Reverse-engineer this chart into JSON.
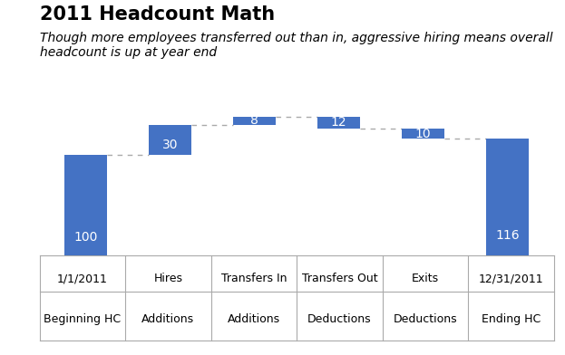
{
  "title": "2011 Headcount Math",
  "subtitle": "Though more employees transferred out than in, aggressive hiring means overall\nheadcount is up at year end",
  "bar_color": "#4472C4",
  "x_line1": [
    "1/1/2011",
    "Hires",
    "Transfers In",
    "Transfers Out",
    "Exits",
    "12/31/2011"
  ],
  "x_line2": [
    "Beginning HC",
    "Additions",
    "Additions",
    "Deductions",
    "Deductions",
    "Ending HC"
  ],
  "bottoms": [
    0,
    100,
    130,
    126,
    116,
    0
  ],
  "bar_heights": [
    100,
    30,
    8,
    12,
    10,
    116
  ],
  "labels": [
    100,
    30,
    8,
    12,
    10,
    116
  ],
  "connector_tops": [
    100,
    130,
    138,
    126,
    116
  ],
  "ylim": [
    0,
    155
  ],
  "background_color": "#FFFFFF",
  "dashed_color": "#AAAAAA",
  "label_color": "#FFFFFF",
  "label_fontsize": 10,
  "title_fontsize": 15,
  "subtitle_fontsize": 10,
  "tick_fontsize": 9
}
